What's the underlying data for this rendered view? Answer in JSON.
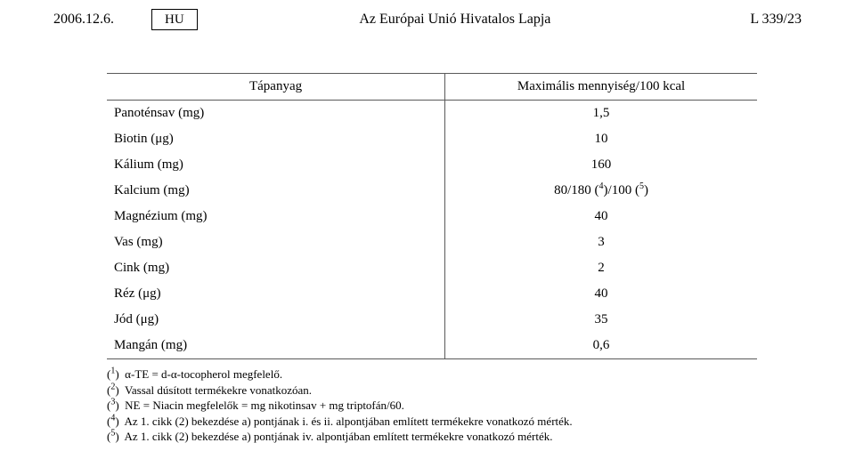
{
  "header": {
    "date": "2006.12.6.",
    "lang_box": "HU",
    "center": "Az Európai Unió Hivatalos Lapja",
    "right": "L 339/23"
  },
  "table": {
    "columns": [
      "Tápanyag",
      "Maximális mennyiség/100 kcal"
    ],
    "rows": [
      {
        "name": "Panoténsav (mg)",
        "value": "1,5"
      },
      {
        "name": "Biotin (μg)",
        "value": "10"
      },
      {
        "name": "Kálium (mg)",
        "value": "160"
      },
      {
        "name": "Kalcium (mg)",
        "value_html": "80/180 (<sup>4</sup>)/100 (<sup>5</sup>)"
      },
      {
        "name": "Magnézium (mg)",
        "value": "40"
      },
      {
        "name": "Vas (mg)",
        "value": "3"
      },
      {
        "name": "Cink (mg)",
        "value": "2"
      },
      {
        "name": "Réz (μg)",
        "value": "40"
      },
      {
        "name": "Jód (μg)",
        "value": "35"
      },
      {
        "name": "Mangán (mg)",
        "value": "0,6"
      }
    ]
  },
  "footnotes": [
    {
      "mark": "1",
      "text": "α-TE = d-α-tocopherol megfelelő."
    },
    {
      "mark": "2",
      "text": "Vassal dúsított termékekre vonatkozóan."
    },
    {
      "mark": "3",
      "text": "NE = Niacin megfelelők = mg nikotinsav + mg triptofán/60."
    },
    {
      "mark": "4",
      "text": "Az 1. cikk (2) bekezdése a) pontjának i. és ii. alpontjában említett termékekre vonatkozó mérték."
    },
    {
      "mark": "5",
      "text": "Az 1. cikk (2) bekezdése a) pontjának iv. alpontjában említett termékekre vonatkozó mérték."
    }
  ]
}
